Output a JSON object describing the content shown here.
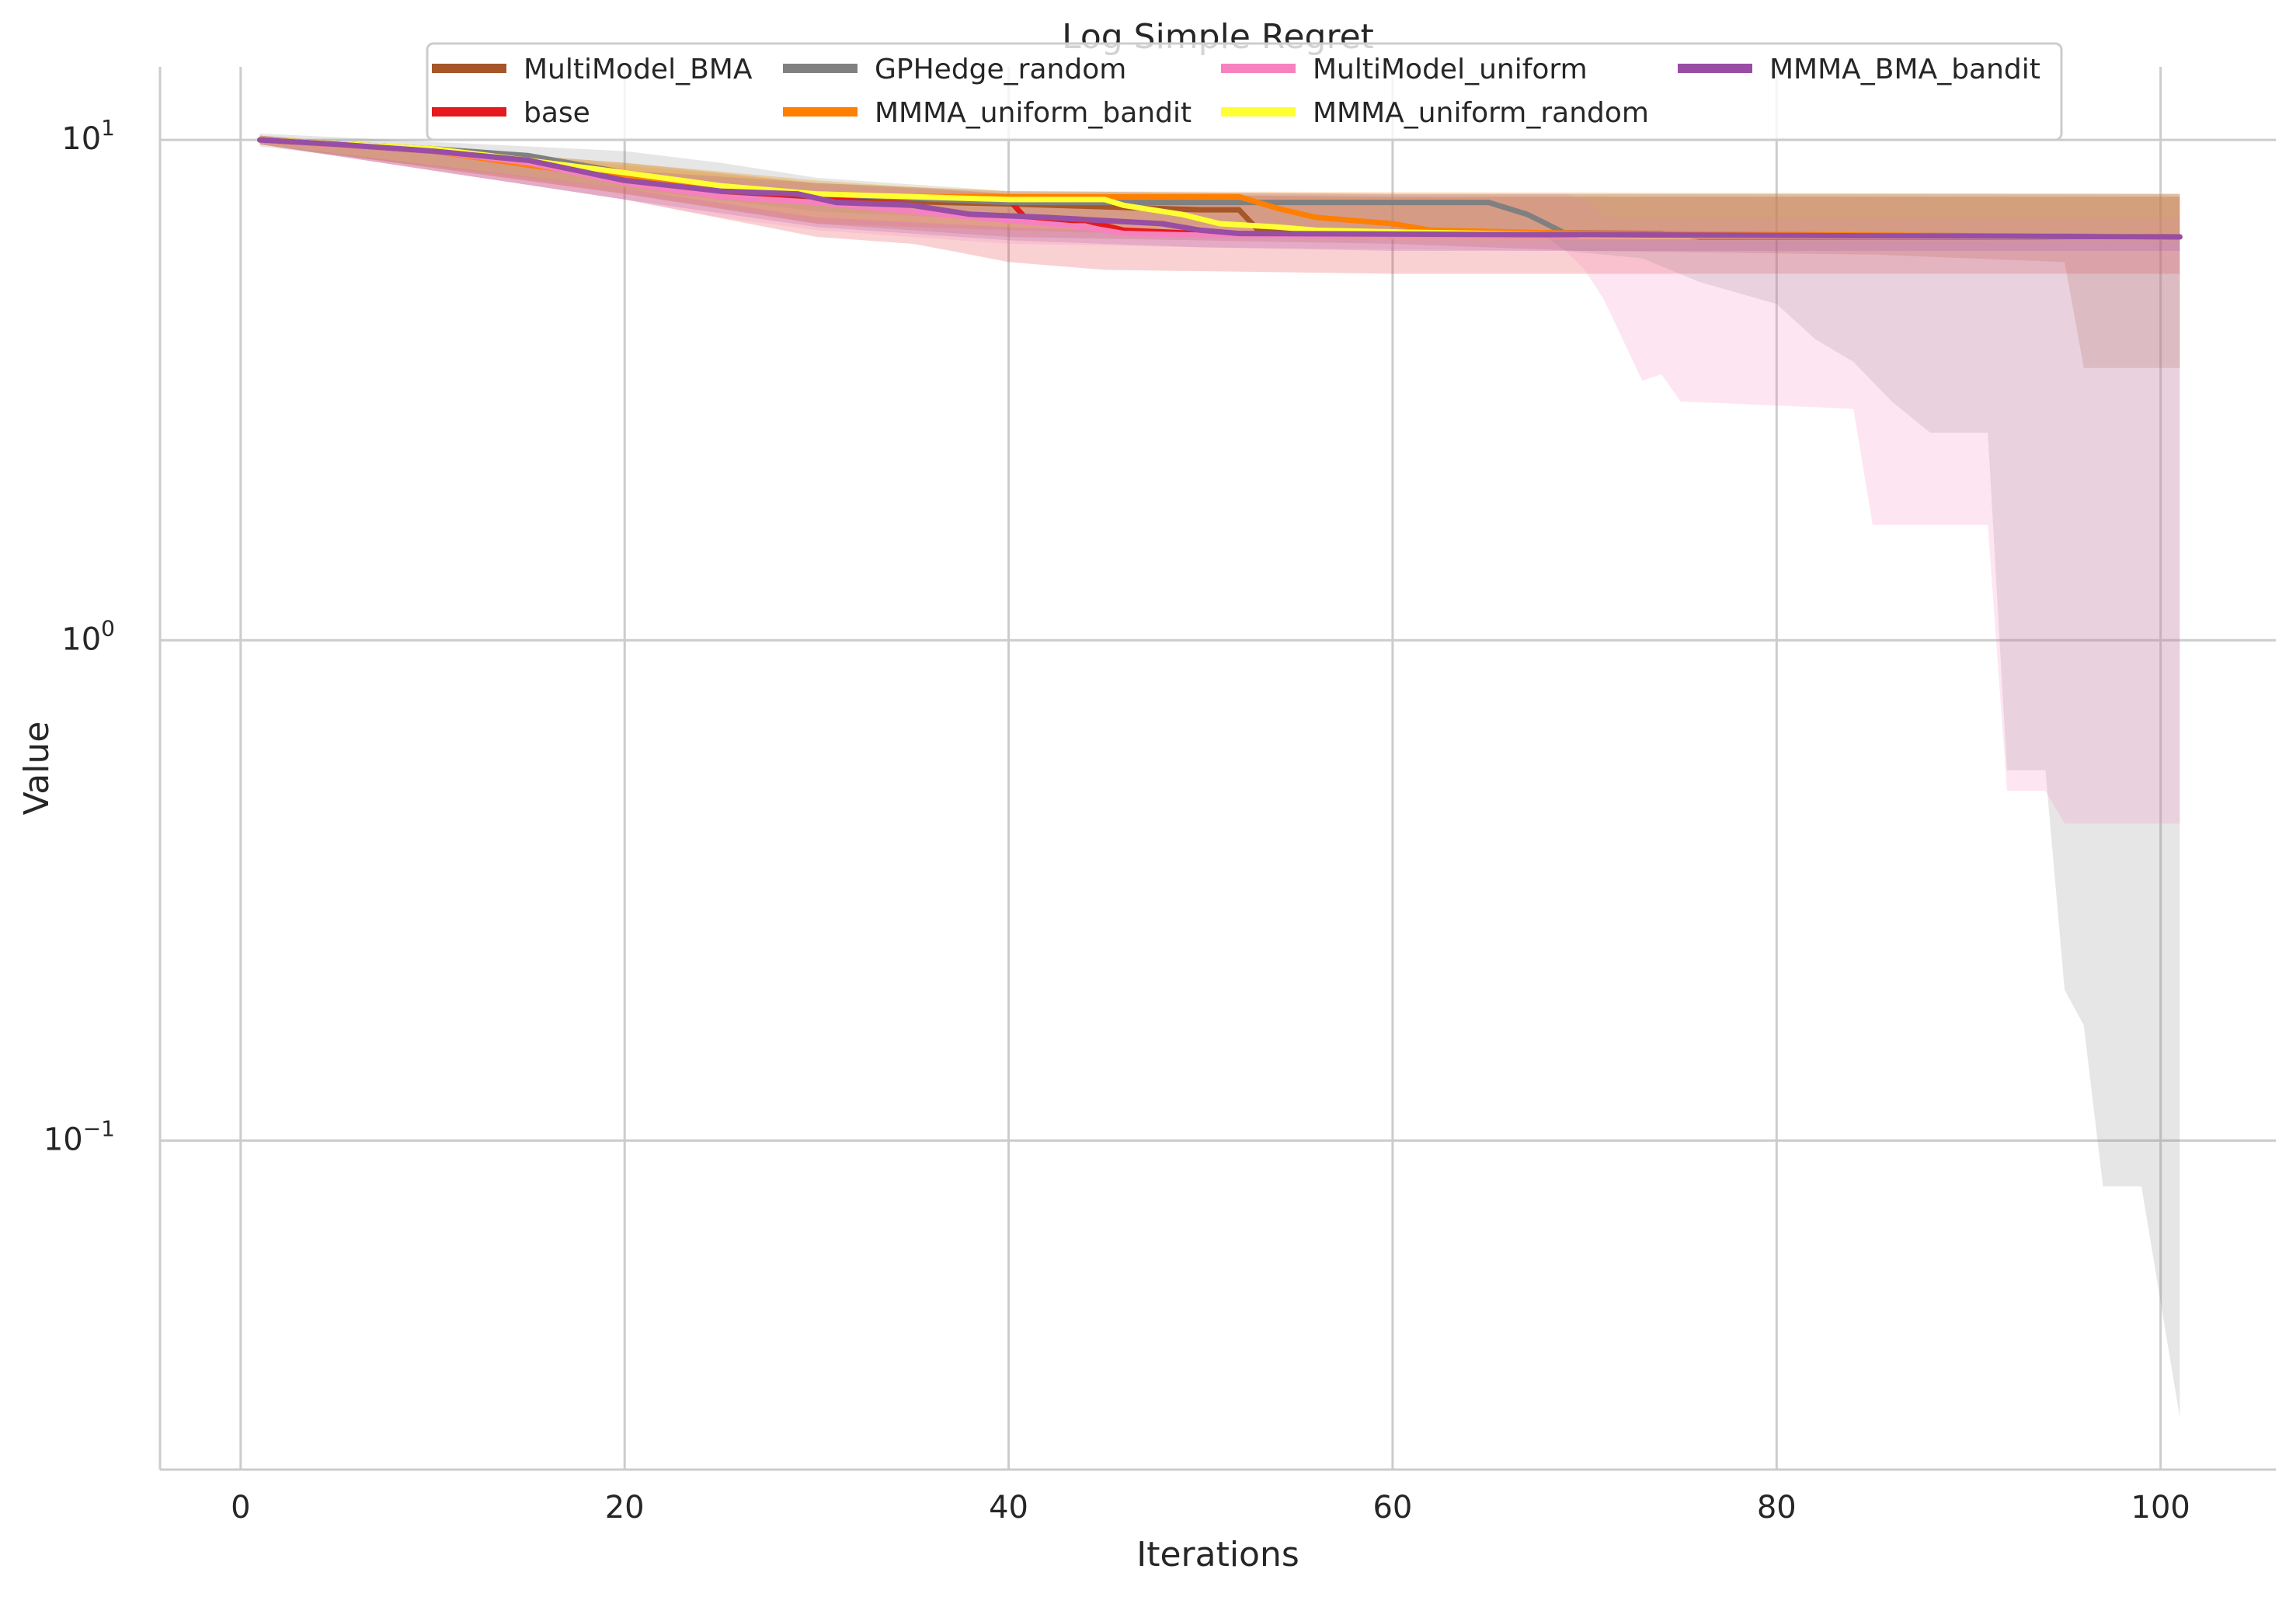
{
  "chart_data": {
    "type": "line",
    "title": "Log Simple Regret",
    "xlabel": "Iterations",
    "ylabel": "Value",
    "xlim": [
      -4.2,
      106
    ],
    "ylim": [
      0.022,
      14
    ],
    "yscale": "log",
    "grid": true,
    "legend_position": "top",
    "x_ticks": [
      0,
      20,
      40,
      60,
      80,
      100
    ],
    "y_ticks": [
      {
        "value": 10,
        "base": "10",
        "exp": "1"
      },
      {
        "value": 1,
        "base": "10",
        "exp": "0"
      },
      {
        "value": 0.1,
        "base": "10",
        "exp": "−1"
      }
    ],
    "series": [
      {
        "name": "MultiModel_BMA",
        "color": "#a65628",
        "mean": [
          [
            1,
            10
          ],
          [
            10,
            9.5
          ],
          [
            15,
            9.0
          ],
          [
            20,
            8.3
          ],
          [
            25,
            7.9
          ],
          [
            30,
            7.6
          ],
          [
            40,
            7.45
          ],
          [
            50,
            7.25
          ],
          [
            52,
            7.25
          ],
          [
            53,
            6.6
          ],
          [
            60,
            6.55
          ],
          [
            74,
            6.5
          ],
          [
            76,
            6.4
          ],
          [
            101,
            6.4
          ]
        ],
        "band_upper": [
          [
            1,
            10.2
          ],
          [
            20,
            9.0
          ],
          [
            30,
            8.2
          ],
          [
            40,
            7.8
          ],
          [
            60,
            7.7
          ],
          [
            101,
            7.7
          ]
        ],
        "band_lower": [
          [
            1,
            9.8
          ],
          [
            20,
            7.8
          ],
          [
            30,
            6.8
          ],
          [
            40,
            6.4
          ],
          [
            60,
            6.2
          ],
          [
            70,
            6.0
          ],
          [
            85,
            5.9
          ],
          [
            95,
            5.7
          ],
          [
            96,
            3.5
          ],
          [
            101,
            3.5
          ]
        ]
      },
      {
        "name": "base",
        "color": "#e41a1c",
        "mean": [
          [
            1,
            10
          ],
          [
            10,
            9.6
          ],
          [
            15,
            9.2
          ],
          [
            20,
            8.4
          ],
          [
            25,
            7.9
          ],
          [
            30,
            7.7
          ],
          [
            39,
            7.6
          ],
          [
            40,
            7.6
          ],
          [
            41,
            6.9
          ],
          [
            44,
            6.9
          ],
          [
            46,
            6.6
          ],
          [
            50,
            6.5
          ],
          [
            101,
            6.4
          ]
        ],
        "band_upper": [
          [
            1,
            10.2
          ],
          [
            20,
            9.0
          ],
          [
            30,
            8.3
          ],
          [
            40,
            7.8
          ],
          [
            60,
            7.7
          ],
          [
            101,
            7.7
          ]
        ],
        "band_lower": [
          [
            1,
            9.8
          ],
          [
            20,
            7.6
          ],
          [
            30,
            6.4
          ],
          [
            35,
            6.2
          ],
          [
            37,
            6.0
          ],
          [
            40,
            5.7
          ],
          [
            45,
            5.5
          ],
          [
            60,
            5.4
          ],
          [
            101,
            5.4
          ]
        ]
      },
      {
        "name": "GPHedge_random",
        "color": "#808080",
        "mean": [
          [
            1,
            10
          ],
          [
            10,
            9.6
          ],
          [
            15,
            9.3
          ],
          [
            20,
            8.6
          ],
          [
            25,
            8.1
          ],
          [
            30,
            7.8
          ],
          [
            40,
            7.5
          ],
          [
            60,
            7.5
          ],
          [
            65,
            7.5
          ],
          [
            67,
            7.1
          ],
          [
            68,
            6.8
          ],
          [
            69,
            6.5
          ],
          [
            101,
            6.4
          ]
        ],
        "band_upper": [
          [
            1,
            10.3
          ],
          [
            20,
            9.5
          ],
          [
            25,
            9.0
          ],
          [
            30,
            8.4
          ],
          [
            40,
            7.9
          ],
          [
            60,
            7.8
          ],
          [
            101,
            7.8
          ]
        ],
        "band_lower": [
          [
            1,
            9.7
          ],
          [
            20,
            8.0
          ],
          [
            30,
            7.2
          ],
          [
            40,
            6.9
          ],
          [
            60,
            6.6
          ],
          [
            68,
            6.4
          ],
          [
            69,
            6.0
          ],
          [
            73,
            5.8
          ],
          [
            76,
            5.2
          ],
          [
            80,
            4.7
          ],
          [
            82,
            4.0
          ],
          [
            84,
            3.6
          ],
          [
            86,
            3.0
          ],
          [
            88,
            2.6
          ],
          [
            91,
            2.6
          ],
          [
            92,
            0.55
          ],
          [
            94,
            0.55
          ],
          [
            95,
            0.2
          ],
          [
            96,
            0.17
          ],
          [
            97,
            0.081
          ],
          [
            99,
            0.081
          ],
          [
            101,
            0.028
          ]
        ]
      },
      {
        "name": "MMMA_uniform_bandit",
        "color": "#ff7f00",
        "mean": [
          [
            1,
            10
          ],
          [
            10,
            9.5
          ],
          [
            15,
            8.9
          ],
          [
            20,
            8.4
          ],
          [
            25,
            8.0
          ],
          [
            30,
            7.8
          ],
          [
            35,
            7.7
          ],
          [
            40,
            7.7
          ],
          [
            52,
            7.7
          ],
          [
            54,
            7.3
          ],
          [
            56,
            7.0
          ],
          [
            60,
            6.8
          ],
          [
            62,
            6.6
          ],
          [
            70,
            6.5
          ],
          [
            101,
            6.4
          ]
        ],
        "band_upper": [
          [
            1,
            10.2
          ],
          [
            20,
            8.9
          ],
          [
            30,
            8.2
          ],
          [
            40,
            7.9
          ],
          [
            101,
            7.8
          ]
        ],
        "band_lower": [
          [
            1,
            9.8
          ],
          [
            20,
            7.8
          ],
          [
            30,
            6.8
          ],
          [
            40,
            6.6
          ],
          [
            60,
            6.3
          ],
          [
            101,
            6.3
          ]
        ]
      },
      {
        "name": "MultiModel_uniform",
        "color": "#f781bf",
        "mean": [
          [
            1,
            10
          ],
          [
            10,
            9.5
          ],
          [
            15,
            9.0
          ],
          [
            20,
            8.2
          ],
          [
            25,
            7.7
          ],
          [
            30,
            7.5
          ],
          [
            40,
            6.9
          ],
          [
            44,
            6.7
          ],
          [
            46,
            6.5
          ],
          [
            50,
            6.45
          ],
          [
            101,
            6.4
          ]
        ],
        "band_upper": [
          [
            1,
            10.2
          ],
          [
            20,
            8.6
          ],
          [
            30,
            8.1
          ],
          [
            40,
            7.8
          ],
          [
            50,
            7.8
          ],
          [
            69,
            7.8
          ],
          [
            70,
            7.6
          ],
          [
            71,
            7.0
          ],
          [
            101,
            7.0
          ]
        ],
        "band_lower": [
          [
            1,
            9.8
          ],
          [
            20,
            7.6
          ],
          [
            25,
            7.0
          ],
          [
            30,
            6.6
          ],
          [
            40,
            6.2
          ],
          [
            50,
            6.1
          ],
          [
            69,
            6.0
          ],
          [
            70,
            5.5
          ],
          [
            71,
            4.8
          ],
          [
            73,
            3.3
          ],
          [
            74,
            3.4
          ],
          [
            75,
            3.0
          ],
          [
            84,
            2.9
          ],
          [
            85,
            1.7
          ],
          [
            91,
            1.7
          ],
          [
            92,
            0.5
          ],
          [
            94,
            0.5
          ],
          [
            95,
            0.43
          ],
          [
            101,
            0.43
          ]
        ]
      },
      {
        "name": "MMMA_uniform_random",
        "color": "#ffff33",
        "mean": [
          [
            1,
            10
          ],
          [
            10,
            9.6
          ],
          [
            15,
            9.1
          ],
          [
            20,
            8.6
          ],
          [
            25,
            8.1
          ],
          [
            30,
            7.8
          ],
          [
            40,
            7.6
          ],
          [
            45,
            7.6
          ],
          [
            46,
            7.4
          ],
          [
            49,
            7.1
          ],
          [
            51,
            6.8
          ],
          [
            54,
            6.7
          ],
          [
            56,
            6.6
          ],
          [
            60,
            6.55
          ],
          [
            70,
            6.45
          ],
          [
            101,
            6.4
          ]
        ],
        "band_upper": [
          [
            1,
            10.2
          ],
          [
            20,
            9.0
          ],
          [
            30,
            8.3
          ],
          [
            40,
            7.9
          ],
          [
            60,
            7.8
          ],
          [
            101,
            7.8
          ]
        ],
        "band_lower": [
          [
            1,
            9.8
          ],
          [
            20,
            8.0
          ],
          [
            30,
            7.0
          ],
          [
            40,
            6.7
          ],
          [
            60,
            6.3
          ],
          [
            101,
            6.3
          ]
        ]
      },
      {
        "name": "MMMA_BMA_bandit",
        "color": "#984ea3",
        "mean": [
          [
            1,
            10
          ],
          [
            5,
            9.8
          ],
          [
            10,
            9.5
          ],
          [
            15,
            9.1
          ],
          [
            20,
            8.3
          ],
          [
            25,
            7.9
          ],
          [
            29,
            7.8
          ],
          [
            31,
            7.5
          ],
          [
            35,
            7.4
          ],
          [
            38,
            7.1
          ],
          [
            42,
            7.0
          ],
          [
            48,
            6.8
          ],
          [
            50,
            6.6
          ],
          [
            52,
            6.5
          ],
          [
            101,
            6.4
          ]
        ],
        "band_upper": [
          [
            1,
            10.2
          ],
          [
            20,
            8.7
          ],
          [
            30,
            8.2
          ],
          [
            40,
            7.9
          ],
          [
            60,
            7.8
          ],
          [
            70,
            7.8
          ],
          [
            101,
            7.8
          ]
        ],
        "band_lower": [
          [
            1,
            9.8
          ],
          [
            20,
            7.6
          ],
          [
            30,
            6.7
          ],
          [
            40,
            6.3
          ],
          [
            50,
            6.1
          ],
          [
            60,
            6.0
          ],
          [
            101,
            6.0
          ]
        ]
      }
    ]
  }
}
